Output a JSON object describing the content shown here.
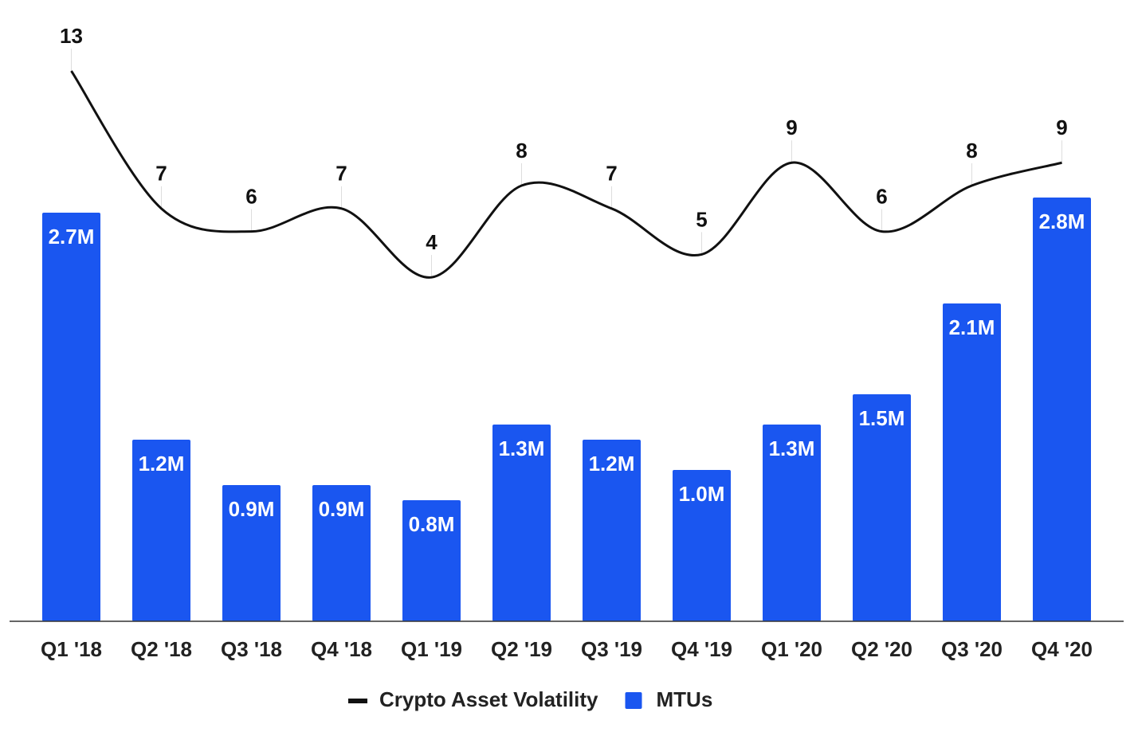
{
  "chart_data": {
    "type": "bar-line",
    "categories": [
      "Q1 '18",
      "Q2 '18",
      "Q3 '18",
      "Q4 '18",
      "Q1 '19",
      "Q2 '19",
      "Q3 '19",
      "Q4 '19",
      "Q1 '20",
      "Q2 '20",
      "Q3 '20",
      "Q4 '20"
    ],
    "series": [
      {
        "name": "Crypto Asset Volatility",
        "type": "line",
        "color": "#111111",
        "axis": "y2",
        "values": [
          13,
          7,
          6,
          7,
          4,
          8,
          7,
          5,
          9,
          6,
          8,
          9
        ]
      },
      {
        "name": "MTUs",
        "type": "bar",
        "color": "#1a56f0",
        "values": [
          2.7,
          1.2,
          0.9,
          0.9,
          0.8,
          1.3,
          1.2,
          1.0,
          1.3,
          1.5,
          2.1,
          2.8
        ],
        "value_labels": [
          "2.7M",
          "1.2M",
          "0.9M",
          "0.9M",
          "0.8M",
          "1.3M",
          "1.2M",
          "1.0M",
          "1.3M",
          "1.5M",
          "2.1M",
          "2.8M"
        ]
      }
    ],
    "ylim": [
      0,
      4
    ],
    "y2lim": [
      -11,
      15.4
    ],
    "legend": "bottom"
  }
}
